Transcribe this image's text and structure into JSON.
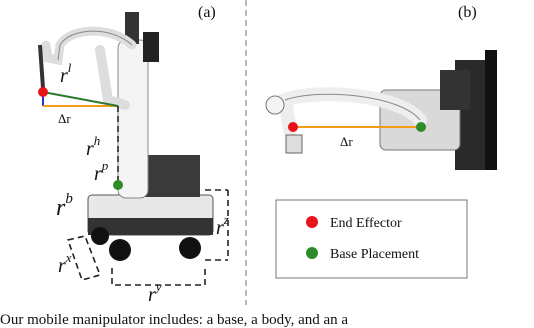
{
  "panel_a": {
    "label": "(a)",
    "r_l": {
      "base": "r",
      "sup": "l"
    },
    "delta_r": "Δr",
    "r_h": {
      "base": "r",
      "sup": "h"
    },
    "r_p": {
      "base": "r",
      "sup": "p"
    },
    "r_b": {
      "base": "r",
      "sup": "b"
    },
    "r_z": {
      "base": "r",
      "sup": "z"
    },
    "r_x": {
      "base": "r",
      "sup": "x"
    },
    "r_y": {
      "base": "r",
      "sup": "y"
    }
  },
  "panel_b": {
    "label": "(b)",
    "delta_r": "Δr",
    "legend": [
      "End Effector",
      "Base Placement"
    ]
  },
  "caption": "Our mobile manipulator includes: a base, a body, and an a"
}
